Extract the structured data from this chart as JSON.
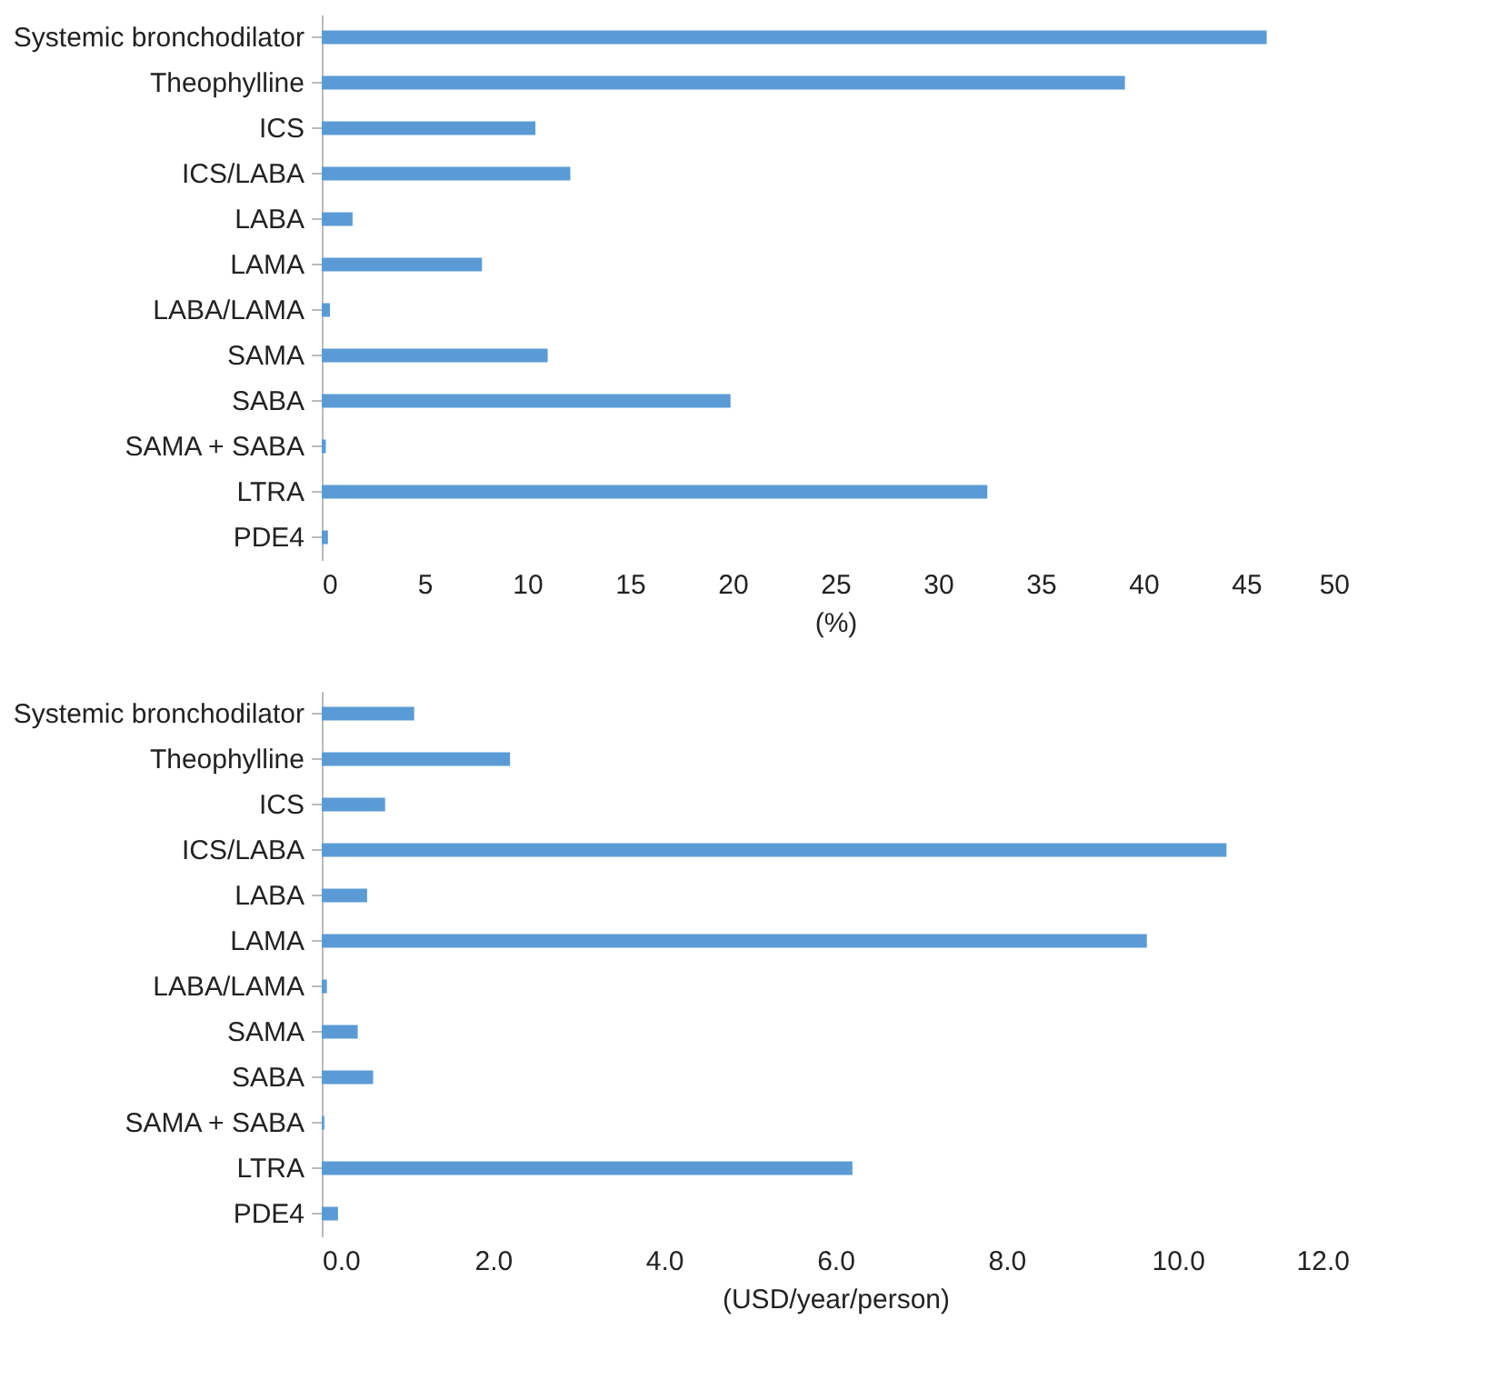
{
  "chart_data": [
    {
      "type": "bar",
      "orientation": "horizontal",
      "xlabel": "(%)",
      "categories": [
        "Systemic bronchodilator",
        "Theophylline",
        "ICS",
        "ICS/LABA",
        "LABA",
        "LAMA",
        "LABA/LAMA",
        "SAMA",
        "SABA",
        "SAMA + SABA",
        "LTRA",
        "PDE4"
      ],
      "values": [
        46.0,
        39.1,
        10.4,
        12.1,
        1.5,
        7.8,
        0.4,
        11.0,
        19.9,
        0.2,
        32.4,
        0.3
      ],
      "color": "#5b9bd5",
      "xlim": [
        0,
        50
      ],
      "xticks": [
        0,
        5,
        10,
        15,
        20,
        25,
        30,
        35,
        40,
        45,
        50
      ]
    },
    {
      "type": "bar",
      "orientation": "horizontal",
      "xlabel": "(USD/year/person)",
      "categories": [
        "Systemic bronchodilator",
        "Theophylline",
        "ICS",
        "ICS/LABA",
        "LABA",
        "LAMA",
        "LABA/LAMA",
        "SAMA",
        "SABA",
        "SAMA + SABA",
        "LTRA",
        "PDE4"
      ],
      "values": [
        1.08,
        2.2,
        0.74,
        10.57,
        0.53,
        9.64,
        0.06,
        0.42,
        0.6,
        0.03,
        6.2,
        0.19
      ],
      "color": "#5b9bd5",
      "xlim": [
        0,
        12
      ],
      "xticks": [
        {
          "value": 0,
          "label": "0.0"
        },
        {
          "value": 2,
          "label": "2.0"
        },
        {
          "value": 4,
          "label": "4.0"
        },
        {
          "value": 6,
          "label": "6.0"
        },
        {
          "value": 8,
          "label": "8.0"
        },
        {
          "value": 10,
          "label": "10.0"
        },
        {
          "value": 12,
          "label": "12.0"
        }
      ]
    }
  ]
}
